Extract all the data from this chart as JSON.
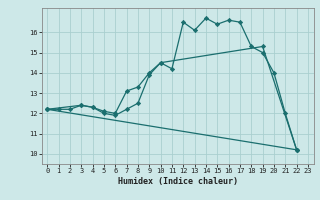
{
  "xlabel": "Humidex (Indice chaleur)",
  "xlim": [
    -0.5,
    23.5
  ],
  "ylim": [
    9.5,
    17.2
  ],
  "yticks": [
    10,
    11,
    12,
    13,
    14,
    15,
    16
  ],
  "xticks": [
    0,
    1,
    2,
    3,
    4,
    5,
    6,
    7,
    8,
    9,
    10,
    11,
    12,
    13,
    14,
    15,
    16,
    17,
    18,
    19,
    20,
    21,
    22,
    23
  ],
  "bg_color": "#cde8e8",
  "line_color": "#1a6e6e",
  "grid_color": "#aacfcf",
  "line1_x": [
    0,
    1,
    2,
    3,
    4,
    5,
    6,
    7,
    8,
    9,
    10,
    11,
    12,
    13,
    14,
    15,
    16,
    17,
    18,
    19,
    20,
    21,
    22
  ],
  "line1_y": [
    12.2,
    12.2,
    12.2,
    12.4,
    12.3,
    12.0,
    11.9,
    12.2,
    12.5,
    13.9,
    14.5,
    14.2,
    16.5,
    16.1,
    16.7,
    16.4,
    16.6,
    16.5,
    15.3,
    15.0,
    14.0,
    12.0,
    10.2
  ],
  "line2_x": [
    0,
    3,
    4,
    5,
    6,
    7,
    8,
    9,
    10,
    19,
    22
  ],
  "line2_y": [
    12.2,
    12.4,
    12.3,
    12.1,
    12.0,
    13.1,
    13.3,
    14.0,
    14.5,
    15.3,
    10.2
  ],
  "line3_x": [
    0,
    22
  ],
  "line3_y": [
    12.2,
    10.2
  ]
}
